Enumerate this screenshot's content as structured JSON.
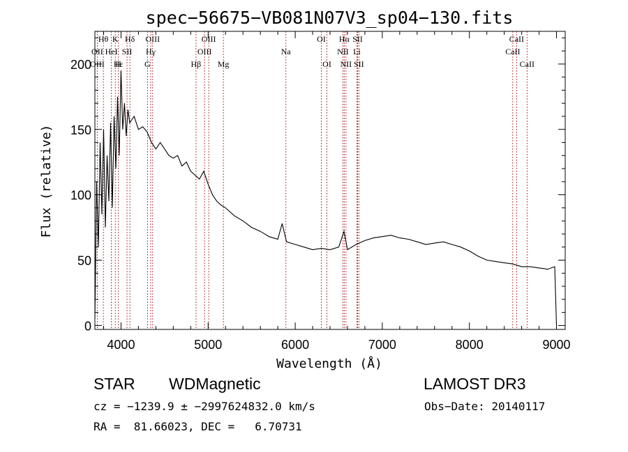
{
  "chart_data": {
    "type": "line",
    "title": "spec−56675−VB081N07V3_sp04−130.fits",
    "xlabel": "Wavelength (Å)",
    "ylabel": "Flux (relative)",
    "xlim": [
      3700,
      9100
    ],
    "ylim": [
      -3,
      225
    ],
    "xticks": [
      4000,
      5000,
      6000,
      7000,
      8000,
      9000
    ],
    "yticks": [
      0,
      50,
      100,
      150,
      200
    ],
    "grid": false,
    "series": [
      {
        "name": "flux",
        "x": [
          3700,
          3720,
          3740,
          3760,
          3780,
          3800,
          3820,
          3840,
          3860,
          3880,
          3900,
          3920,
          3940,
          3960,
          3980,
          4000,
          4020,
          4040,
          4060,
          4080,
          4100,
          4150,
          4200,
          4250,
          4300,
          4350,
          4400,
          4450,
          4500,
          4550,
          4600,
          4650,
          4700,
          4750,
          4800,
          4850,
          4900,
          4950,
          5000,
          5050,
          5100,
          5150,
          5200,
          5300,
          5400,
          5500,
          5600,
          5700,
          5800,
          5850,
          5900,
          6000,
          6100,
          6200,
          6300,
          6400,
          6500,
          6560,
          6600,
          6700,
          6800,
          6900,
          7000,
          7100,
          7200,
          7300,
          7400,
          7500,
          7600,
          7700,
          7800,
          7900,
          8000,
          8100,
          8200,
          8300,
          8400,
          8500,
          8600,
          8700,
          8800,
          8900,
          8980,
          9000
        ],
        "y": [
          5,
          110,
          60,
          140,
          85,
          150,
          75,
          130,
          95,
          155,
          90,
          160,
          120,
          175,
          130,
          195,
          150,
          170,
          145,
          165,
          155,
          160,
          150,
          152,
          148,
          140,
          135,
          140,
          135,
          130,
          128,
          130,
          122,
          125,
          118,
          115,
          112,
          118,
          108,
          100,
          95,
          92,
          90,
          84,
          80,
          75,
          72,
          68,
          66,
          78,
          64,
          62,
          60,
          58,
          59,
          58,
          60,
          72,
          58,
          62,
          65,
          67,
          68,
          69,
          67,
          66,
          64,
          62,
          63,
          64,
          62,
          60,
          57,
          53,
          50,
          49,
          48,
          47,
          45,
          45,
          44,
          43,
          45,
          0
        ]
      }
    ],
    "lines_row1": [
      {
        "label": "Hθ",
        "x": 3797
      },
      {
        "label": "K",
        "x": 3934
      },
      {
        "label": "Hδ",
        "x": 4102
      },
      {
        "label": "OIII",
        "x": 4363
      },
      {
        "label": "OIII",
        "x": 5007
      },
      {
        "label": "OI",
        "x": 6300
      },
      {
        "label": "Hα",
        "x": 6563
      },
      {
        "label": "SII",
        "x": 6716
      },
      {
        "label": "CaII",
        "x": 8542
      }
    ],
    "lines_row2": [
      {
        "label": "OII",
        "x": 3727
      },
      {
        "label": "HeI",
        "x": 3889
      },
      {
        "label": "SII",
        "x": 4069
      },
      {
        "label": "Hγ",
        "x": 4341
      },
      {
        "label": "OIII",
        "x": 4959
      },
      {
        "label": "Na",
        "x": 5893
      },
      {
        "label": "NII",
        "x": 6548
      },
      {
        "label": "Li",
        "x": 6708
      },
      {
        "label": "CaII",
        "x": 8498
      }
    ],
    "lines_row3": [
      {
        "label": "OIII",
        "x": 3727
      },
      {
        "label": "Hε",
        "x": 3970
      },
      {
        "label": "H",
        "x": 3969
      },
      {
        "label": "G",
        "x": 4304
      },
      {
        "label": "Hβ",
        "x": 4861
      },
      {
        "label": "Mg",
        "x": 5175
      },
      {
        "label": "OI",
        "x": 6364
      },
      {
        "label": "NII",
        "x": 6583
      },
      {
        "label": "SII",
        "x": 6731
      },
      {
        "label": "CaII",
        "x": 8662
      }
    ]
  },
  "info": {
    "class_label": "STAR",
    "subclass_label": "WDMagnetic",
    "survey_label": "LAMOST DR3",
    "cz_text": "cz = −1239.9 ± −2997624832.0 km/s",
    "obs_date_text": "Obs−Date: 20140117",
    "radec_text": "RA =  81.66023, DEC =   6.70731"
  }
}
